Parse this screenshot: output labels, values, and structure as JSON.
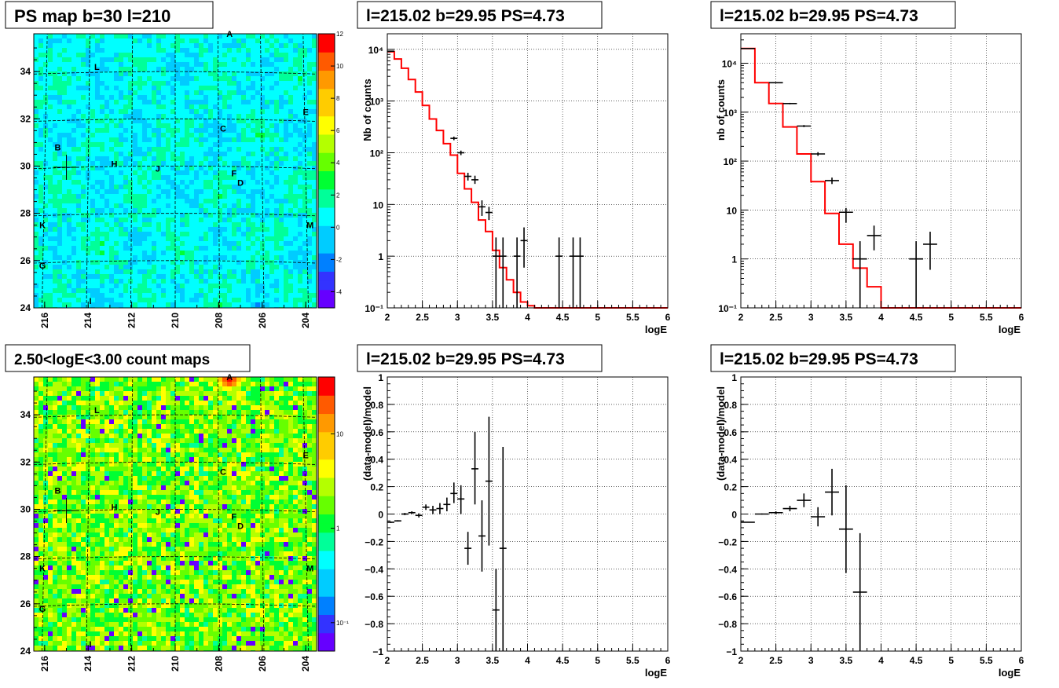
{
  "chart_data": [
    {
      "id": "ps_map",
      "type": "heatmap",
      "title": "PS map b=30 l=210",
      "x_ticks": [
        "216",
        "214",
        "212",
        "210",
        "208",
        "206",
        "204"
      ],
      "y_ticks": [
        "24",
        "26",
        "28",
        "30",
        "32",
        "34"
      ],
      "xlim": [
        216.5,
        203.5
      ],
      "ylim": [
        24,
        35.6
      ],
      "colorbar": {
        "min": -5,
        "max": 12,
        "ticks": [
          "-4",
          "-2",
          "0",
          "2",
          "4",
          "6",
          "8",
          "10",
          "12"
        ],
        "tick_values": [
          -4,
          -2,
          0,
          2,
          4,
          6,
          8,
          10,
          12
        ]
      },
      "background_level": 0.5,
      "marker": {
        "l": 215.0,
        "b": 29.95
      },
      "sources": [
        {
          "label": "A",
          "l": 207.5,
          "b": 35.6
        },
        {
          "label": "L",
          "l": 213.6,
          "b": 34.2
        },
        {
          "label": "E",
          "l": 204.0,
          "b": 32.3
        },
        {
          "label": "C",
          "l": 207.8,
          "b": 31.6
        },
        {
          "label": "B",
          "l": 215.4,
          "b": 30.8
        },
        {
          "label": "H",
          "l": 212.8,
          "b": 30.1
        },
        {
          "label": "J",
          "l": 210.8,
          "b": 29.9
        },
        {
          "label": "F",
          "l": 207.3,
          "b": 29.7
        },
        {
          "label": "D",
          "l": 207.0,
          "b": 29.3
        },
        {
          "label": "K",
          "l": 216.1,
          "b": 27.5
        },
        {
          "label": "M",
          "l": 203.8,
          "b": 27.5
        },
        {
          "label": "G",
          "l": 216.1,
          "b": 25.8
        },
        {
          "label": "I",
          "l": 213.9,
          "b": 24.3
        }
      ]
    },
    {
      "id": "count_map",
      "type": "heatmap",
      "title": "2.50<logE<3.00 count maps",
      "x_ticks": [
        "216",
        "214",
        "212",
        "210",
        "208",
        "206",
        "204"
      ],
      "y_ticks": [
        "24",
        "26",
        "28",
        "30",
        "32",
        "34"
      ],
      "xlim": [
        216.5,
        203.5
      ],
      "ylim": [
        24,
        35.6
      ],
      "colorbar": {
        "scale": "log",
        "min": 0.05,
        "max": 40,
        "ticks": [
          "10",
          "1",
          "10⁻¹"
        ],
        "tick_values": [
          10,
          1,
          0.1
        ]
      },
      "background_level": 2,
      "hotspot": {
        "label": "A",
        "l": 207.5,
        "b": 35.6,
        "peak": 30
      },
      "marker": {
        "l": 215.0,
        "b": 29.95
      },
      "sources": [
        {
          "label": "A",
          "l": 207.5,
          "b": 35.6
        },
        {
          "label": "L",
          "l": 213.6,
          "b": 34.2
        },
        {
          "label": "E",
          "l": 204.0,
          "b": 32.3
        },
        {
          "label": "C",
          "l": 207.8,
          "b": 31.6
        },
        {
          "label": "B",
          "l": 215.4,
          "b": 30.8
        },
        {
          "label": "H",
          "l": 212.8,
          "b": 30.1
        },
        {
          "label": "J",
          "l": 210.8,
          "b": 29.9
        },
        {
          "label": "F",
          "l": 207.3,
          "b": 29.7
        },
        {
          "label": "D",
          "l": 207.0,
          "b": 29.3
        },
        {
          "label": "K",
          "l": 216.1,
          "b": 27.5
        },
        {
          "label": "M",
          "l": 203.8,
          "b": 27.5
        },
        {
          "label": "G",
          "l": 216.1,
          "b": 25.8
        },
        {
          "label": "I",
          "l": 213.9,
          "b": 24.3
        }
      ]
    },
    {
      "id": "spectrum_a",
      "type": "line",
      "title": "l=215.02 b=29.95 PS=4.73",
      "xlabel": "logE",
      "ylabel": "Nb of counts",
      "xlim": [
        2,
        6
      ],
      "ylim": [
        0.1,
        20000
      ],
      "yscale": "log",
      "x_ticks": [
        2,
        2.5,
        3,
        3.5,
        4,
        4.5,
        5,
        5.5,
        6
      ],
      "x_tick_labels": [
        "2",
        "2.5",
        "3",
        "3.5",
        "4",
        "4.5",
        "5",
        "5.5",
        "6"
      ],
      "y_ticks": [
        0.1,
        1,
        10,
        100,
        1000,
        10000
      ],
      "y_tick_labels": [
        "10⁻¹",
        "1",
        "10",
        "10²",
        "10³",
        "10⁴"
      ],
      "model_step": {
        "edges": [
          2.0,
          2.1,
          2.2,
          2.3,
          2.4,
          2.5,
          2.6,
          2.7,
          2.8,
          2.9,
          3.0,
          3.1,
          3.2,
          3.3,
          3.4,
          3.5,
          3.6,
          3.7,
          3.8,
          3.9,
          4.0,
          4.1,
          4.2,
          6.0
        ],
        "values": [
          9000,
          6500,
          4300,
          2600,
          1500,
          820,
          450,
          270,
          150,
          90,
          40,
          20,
          11,
          5,
          3,
          1.3,
          0.6,
          0.35,
          0.2,
          0.13,
          0.11,
          0.1,
          0.1
        ]
      },
      "data": [
        {
          "x": 2.05,
          "y": 9200,
          "lo": 9100,
          "hi": 9300
        },
        {
          "x": 2.95,
          "y": 190,
          "lo": 175,
          "hi": 205
        },
        {
          "x": 3.05,
          "y": 100,
          "lo": 90,
          "hi": 110
        },
        {
          "x": 3.15,
          "y": 35,
          "lo": 29,
          "hi": 41
        },
        {
          "x": 3.25,
          "y": 30,
          "lo": 25,
          "hi": 36
        },
        {
          "x": 3.35,
          "y": 9,
          "lo": 6,
          "hi": 12
        },
        {
          "x": 3.45,
          "y": 7,
          "lo": 5,
          "hi": 9
        },
        {
          "x": 3.55,
          "y": 1,
          "lo": 0.1,
          "hi": 2.3
        },
        {
          "x": 3.65,
          "y": 1,
          "lo": 0.1,
          "hi": 2.3
        },
        {
          "x": 3.85,
          "y": 1,
          "lo": 0.1,
          "hi": 2.3
        },
        {
          "x": 3.95,
          "y": 2,
          "lo": 0.6,
          "hi": 3.6
        },
        {
          "x": 4.45,
          "y": 1,
          "lo": 0.1,
          "hi": 2.3
        },
        {
          "x": 4.65,
          "y": 1,
          "lo": 0.1,
          "hi": 2.3
        },
        {
          "x": 4.75,
          "y": 1,
          "lo": 0.1,
          "hi": 2.3
        }
      ]
    },
    {
      "id": "spectrum_b",
      "type": "line",
      "title": "l=215.02 b=29.95 PS=4.73",
      "xlabel": "logE",
      "ylabel": "nb of counts",
      "xlim": [
        2,
        6
      ],
      "ylim": [
        0.1,
        40000
      ],
      "yscale": "log",
      "x_ticks": [
        2,
        2.5,
        3,
        3.5,
        4,
        4.5,
        5,
        5.5,
        6
      ],
      "x_tick_labels": [
        "2",
        "2.5",
        "3",
        "3.5",
        "4",
        "4.5",
        "5",
        "5.5",
        "6"
      ],
      "y_ticks": [
        0.1,
        1,
        10,
        100,
        1000,
        10000
      ],
      "y_tick_labels": [
        "10⁻¹",
        "1",
        "10",
        "10²",
        "10³",
        "10⁴"
      ],
      "model_step": {
        "edges": [
          2.0,
          2.2,
          2.4,
          2.6,
          2.8,
          3.0,
          3.2,
          3.4,
          3.6,
          3.8,
          4.0,
          4.2,
          6.0
        ],
        "values": [
          20000,
          4000,
          1500,
          500,
          140,
          38,
          8.5,
          2,
          0.65,
          0.27,
          0.1,
          0.1
        ]
      },
      "data": [
        {
          "x": 2.1,
          "y": 20000,
          "lo": 19800,
          "hi": 20200
        },
        {
          "x": 2.5,
          "y": 4000,
          "lo": 3900,
          "hi": 4100
        },
        {
          "x": 2.7,
          "y": 1500,
          "lo": 1450,
          "hi": 1550
        },
        {
          "x": 2.9,
          "y": 520,
          "lo": 495,
          "hi": 545
        },
        {
          "x": 3.1,
          "y": 140,
          "lo": 128,
          "hi": 152
        },
        {
          "x": 3.3,
          "y": 40,
          "lo": 34,
          "hi": 46
        },
        {
          "x": 3.5,
          "y": 9,
          "lo": 5.5,
          "hi": 11
        },
        {
          "x": 3.7,
          "y": 1,
          "lo": 0.1,
          "hi": 2.3
        },
        {
          "x": 3.9,
          "y": 3,
          "lo": 1.5,
          "hi": 4.8
        },
        {
          "x": 4.5,
          "y": 1,
          "lo": 0.1,
          "hi": 2.3
        },
        {
          "x": 4.7,
          "y": 2,
          "lo": 0.6,
          "hi": 3.6
        }
      ]
    },
    {
      "id": "residual_a",
      "type": "scatter",
      "title": "l=215.02 b=29.95 PS=4.73",
      "xlabel": "logE",
      "ylabel": "(data-model)/model",
      "xlim": [
        2,
        6
      ],
      "ylim": [
        -1,
        1
      ],
      "x_ticks": [
        2,
        2.5,
        3,
        3.5,
        4,
        4.5,
        5,
        5.5,
        6
      ],
      "x_tick_labels": [
        "2",
        "2.5",
        "3",
        "3.5",
        "4",
        "4.5",
        "5",
        "5.5",
        "6"
      ],
      "y_ticks": [
        -1,
        -0.8,
        -0.6,
        -0.4,
        -0.2,
        0,
        0.2,
        0.4,
        0.6,
        0.8,
        1
      ],
      "y_tick_labels": [
        "−1",
        "−0.8",
        "−0.6",
        "−0.4",
        "−0.2",
        "0",
        "0.2",
        "0.4",
        "0.6",
        "0.8",
        "1"
      ],
      "data": [
        {
          "x": 2.05,
          "y": -0.06,
          "lo": -0.065,
          "hi": -0.055
        },
        {
          "x": 2.15,
          "y": -0.05,
          "lo": -0.055,
          "hi": -0.045
        },
        {
          "x": 2.25,
          "y": 0.0,
          "lo": -0.008,
          "hi": 0.008
        },
        {
          "x": 2.35,
          "y": 0.01,
          "lo": 0.0,
          "hi": 0.02
        },
        {
          "x": 2.45,
          "y": -0.01,
          "lo": -0.025,
          "hi": 0.005
        },
        {
          "x": 2.55,
          "y": 0.05,
          "lo": 0.03,
          "hi": 0.07
        },
        {
          "x": 2.65,
          "y": 0.03,
          "lo": 0.0,
          "hi": 0.06
        },
        {
          "x": 2.75,
          "y": 0.04,
          "lo": 0.0,
          "hi": 0.08
        },
        {
          "x": 2.85,
          "y": 0.07,
          "lo": 0.02,
          "hi": 0.12
        },
        {
          "x": 2.95,
          "y": 0.15,
          "lo": 0.08,
          "hi": 0.23
        },
        {
          "x": 3.05,
          "y": 0.11,
          "lo": 0.0,
          "hi": 0.21
        },
        {
          "x": 3.15,
          "y": -0.25,
          "lo": -0.37,
          "hi": -0.13
        },
        {
          "x": 3.25,
          "y": 0.33,
          "lo": 0.07,
          "hi": 0.6
        },
        {
          "x": 3.35,
          "y": -0.16,
          "lo": -0.42,
          "hi": 0.1
        },
        {
          "x": 3.45,
          "y": 0.24,
          "lo": -0.23,
          "hi": 0.71
        },
        {
          "x": 3.55,
          "y": -0.7,
          "lo": -1.0,
          "hi": -0.4
        },
        {
          "x": 3.65,
          "y": -0.25,
          "lo": -1.0,
          "hi": 0.49
        }
      ]
    },
    {
      "id": "residual_b",
      "type": "scatter",
      "title": "l=215.02 b=29.95 PS=4.73",
      "xlabel": "logE",
      "ylabel": "(data-model)/model",
      "xlim": [
        2,
        6
      ],
      "ylim": [
        -1,
        1
      ],
      "x_ticks": [
        2,
        2.5,
        3,
        3.5,
        4,
        4.5,
        5,
        5.5,
        6
      ],
      "x_tick_labels": [
        "2",
        "2.5",
        "3",
        "3.5",
        "4",
        "4.5",
        "5",
        "5.5",
        "6"
      ],
      "y_ticks": [
        -1,
        -0.8,
        -0.6,
        -0.4,
        -0.2,
        0,
        0.2,
        0.4,
        0.6,
        0.8,
        1
      ],
      "y_tick_labels": [
        "−1",
        "−0.8",
        "−0.6",
        "−0.4",
        "−0.2",
        "0",
        "0.2",
        "0.4",
        "0.6",
        "0.8",
        "1"
      ],
      "data": [
        {
          "x": 2.1,
          "y": -0.06,
          "lo": -0.063,
          "hi": -0.057
        },
        {
          "x": 2.3,
          "y": 0.0,
          "lo": -0.004,
          "hi": 0.004
        },
        {
          "x": 2.5,
          "y": 0.01,
          "lo": 0.0,
          "hi": 0.02
        },
        {
          "x": 2.7,
          "y": 0.04,
          "lo": 0.02,
          "hi": 0.06
        },
        {
          "x": 2.9,
          "y": 0.1,
          "lo": 0.05,
          "hi": 0.15
        },
        {
          "x": 3.1,
          "y": -0.02,
          "lo": -0.09,
          "hi": 0.05
        },
        {
          "x": 3.3,
          "y": 0.16,
          "lo": -0.01,
          "hi": 0.33
        },
        {
          "x": 3.5,
          "y": -0.11,
          "lo": -0.43,
          "hi": 0.21
        },
        {
          "x": 3.7,
          "y": -0.57,
          "lo": -1.0,
          "hi": -0.14
        }
      ]
    }
  ],
  "colors": {
    "model_line": "#ff0000",
    "data_marker": "#000000",
    "grid": "#000000"
  }
}
